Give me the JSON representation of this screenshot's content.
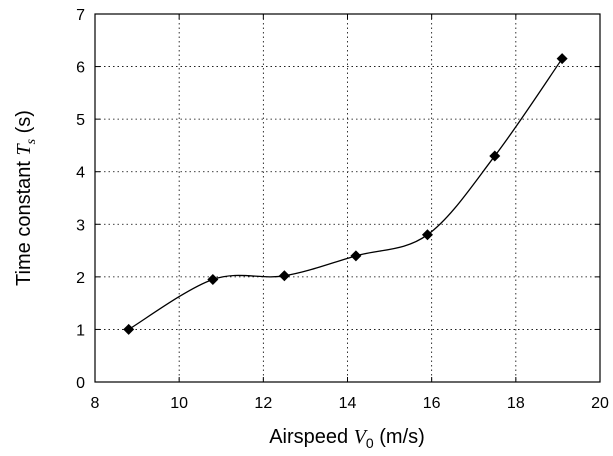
{
  "chart_data": {
    "type": "line",
    "xlabel": {
      "prefix": "Airspeed ",
      "symbol": "V",
      "sub": "0",
      "suffix": " (m/s)"
    },
    "ylabel": {
      "prefix": "Time constant ",
      "symbol": "T",
      "sub": "s",
      "suffix": "  (s)"
    },
    "xlim": [
      8,
      20
    ],
    "ylim": [
      0,
      7
    ],
    "xticks": [
      8,
      10,
      12,
      14,
      16,
      18,
      20
    ],
    "yticks": [
      0,
      1,
      2,
      3,
      4,
      5,
      6,
      7
    ],
    "grid": true,
    "series": [
      {
        "marker": "diamond",
        "x": [
          8.8,
          10.8,
          12.5,
          14.2,
          15.9,
          17.5,
          19.1
        ],
        "y": [
          1.0,
          1.95,
          2.02,
          2.4,
          2.8,
          4.3,
          6.15
        ]
      }
    ]
  }
}
